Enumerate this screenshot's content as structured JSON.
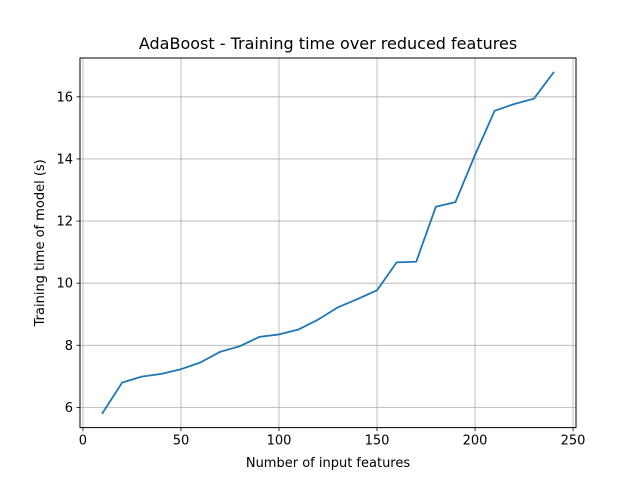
{
  "chart_data": {
    "type": "line",
    "title": "AdaBoost - Training time over reduced features",
    "xlabel": "Number of input features",
    "ylabel": "Training time of model (s)",
    "xlim": [
      -1.5,
      251.5
    ],
    "ylim": [
      5.35,
      17.25
    ],
    "xticks": [
      0,
      50,
      100,
      150,
      200,
      250
    ],
    "yticks": [
      6,
      8,
      10,
      12,
      14,
      16
    ],
    "grid": true,
    "series": [
      {
        "color": "#1f77b4",
        "x": [
          10,
          20,
          30,
          40,
          50,
          60,
          70,
          80,
          90,
          100,
          110,
          120,
          130,
          140,
          150,
          160,
          170,
          180,
          190,
          200,
          210,
          220,
          230,
          240
        ],
        "y": [
          5.82,
          6.8,
          6.99,
          7.08,
          7.23,
          7.45,
          7.79,
          7.97,
          8.27,
          8.35,
          8.51,
          8.83,
          9.22,
          9.49,
          9.77,
          10.67,
          10.69,
          12.46,
          12.61,
          14.13,
          15.55,
          15.77,
          15.94,
          16.78
        ]
      }
    ]
  }
}
